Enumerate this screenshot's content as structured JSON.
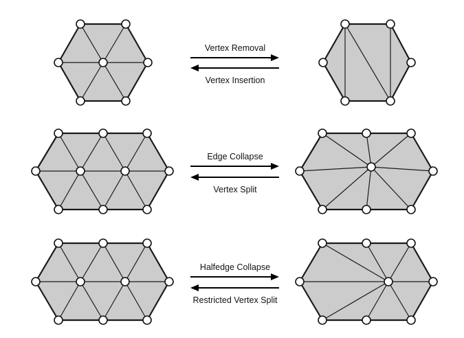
{
  "operations": [
    {
      "forward_label": "Vertex Removal",
      "backward_label": "Vertex Insertion"
    },
    {
      "forward_label": "Edge Collapse",
      "backward_label": "Vertex Split"
    },
    {
      "forward_label": "Halfedge Collapse",
      "backward_label": "Restricted Vertex Split"
    }
  ]
}
